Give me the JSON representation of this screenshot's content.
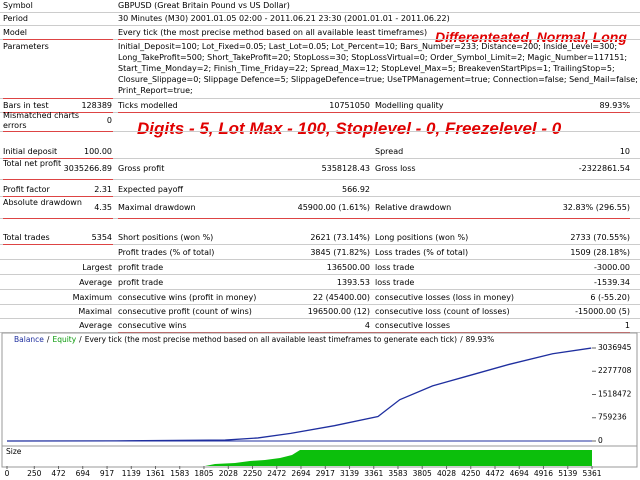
{
  "report": {
    "rows": [
      {
        "label": "Symbol",
        "value": "GBPUSD (Great Britain Pound vs US Dollar)"
      },
      {
        "label": "Period",
        "value": "30 Minutes (M30) 2001.01.05 02:00 - 2011.06.21 23:30 (2001.01.01 - 2011.06.22)"
      },
      {
        "label": "Model",
        "value": "Every tick (the most precise method based on all available least timeframes)"
      },
      {
        "label": "Parameters",
        "lines": [
          "Initial_Deposit=100; Lot_Fixed=0.05; Last_Lot=0.05; Lot_Percent=10; Bars_Number=233; Distance=200; Inside_Level=300;",
          "Long_TakeProfit=500; Short_TakeProfit=20; StopLoss=30; StopLossVirtual=0; Order_Symbol_Limit=2; Magic_Number=117151;",
          "Start_Time_Monday=2; Finish_Time_Friday=22; Spread_Max=12; StopLevel_Max=5; BreakevenStartPips=1; TrailingStop=5;",
          "Closure_Slippage=0; Slippage Defence=5; SlippageDefence=true; UseTPManagement=true; Connection=false; Send_Mail=false;",
          "Print_Report=true;"
        ]
      },
      {
        "label": "Bars in test",
        "value": "128389",
        "label2": "Ticks modelled",
        "value2": "10751050",
        "label3": "Modelling quality",
        "value3": "89.93%"
      },
      {
        "label": "Mismatched charts errors",
        "value": "0"
      },
      {
        "label": "Initial deposit",
        "value": "100.00",
        "label3": "Spread",
        "value3": "10"
      },
      {
        "label": "Total net profit",
        "value": "3035266.89",
        "label2": "Gross profit",
        "value2": "5358128.43",
        "label3": "Gross loss",
        "value3": "-2322861.54"
      },
      {
        "label": "Profit factor",
        "value": "2.31",
        "label2": "Expected payoff",
        "value2": "566.92"
      },
      {
        "label": "Absolute drawdown",
        "value": "4.35",
        "label2": "Maximal drawdown",
        "value2": "45900.00 (1.61%)",
        "label3": "Relative drawdown",
        "value3": "32.83% (296.55)"
      },
      {
        "label": "Total trades",
        "value": "5354",
        "label2": "Short positions (won %)",
        "value2": "2621 (73.14%)",
        "label3": "Long positions (won %)",
        "value3": "2733 (70.55%)"
      },
      {
        "label2": "Profit trades (% of total)",
        "value2": "3845 (71.82%)",
        "label3": "Loss trades (% of total)",
        "value3": "1509 (28.18%)"
      },
      {
        "label": "Largest",
        "label2": "profit trade",
        "value2": "136500.00",
        "label3": "loss trade",
        "value3": "-3000.00"
      },
      {
        "label": "Average",
        "label2": "profit trade",
        "value2": "1393.53",
        "label3": "loss trade",
        "value3": "-1539.34"
      },
      {
        "label": "Maximum",
        "label2": "consecutive wins (profit in money)",
        "value2": "22 (45400.00)",
        "label3": "consecutive losses (loss in money)",
        "value3": "6 (-55.20)"
      },
      {
        "label": "Maximal",
        "label2": "consecutive profit (count of wins)",
        "value2": "196500.00 (12)",
        "label3": "consecutive loss (count of losses)",
        "value3": "-15000.00 (5)"
      },
      {
        "label": "Average",
        "label2": "consecutive wins",
        "value2": "4",
        "label3": "consecutive losses",
        "value3": "1"
      }
    ],
    "annotations": [
      "Differenteated, Normal, Long",
      "Digits - 5, Lot Max - 100, Stoplevel - 0, Freezelevel - 0"
    ]
  },
  "chart_data": {
    "type": "line",
    "header": [
      "Balance",
      "Equity",
      "Every tick (the most precise method based on all available least timeframes to generate each tick)",
      "89.93%"
    ],
    "separator": "/",
    "size_label": "Size",
    "x": [
      0,
      1000,
      2000,
      2300,
      2600,
      3000,
      3400,
      3600,
      3900,
      4200,
      4600,
      5000,
      5354
    ],
    "series": [
      {
        "name": "Balance",
        "color": "#1f2f9f",
        "values": [
          100,
          5000,
          30000,
          100000,
          250000,
          500000,
          800000,
          1350000,
          1800000,
          2100000,
          2500000,
          2850000,
          3035267
        ]
      }
    ],
    "xlim": [
      0,
      5361
    ],
    "ylim": [
      0,
      3200000
    ],
    "xticks": [
      0,
      250,
      472,
      694,
      917,
      1139,
      1361,
      1583,
      1805,
      2028,
      2250,
      2472,
      2694,
      2917,
      3139,
      3361,
      3583,
      3805,
      4028,
      4250,
      4472,
      4694,
      4916,
      5139,
      5361
    ],
    "yticks": [
      0,
      759236,
      1518472,
      2277708,
      3036945
    ]
  }
}
